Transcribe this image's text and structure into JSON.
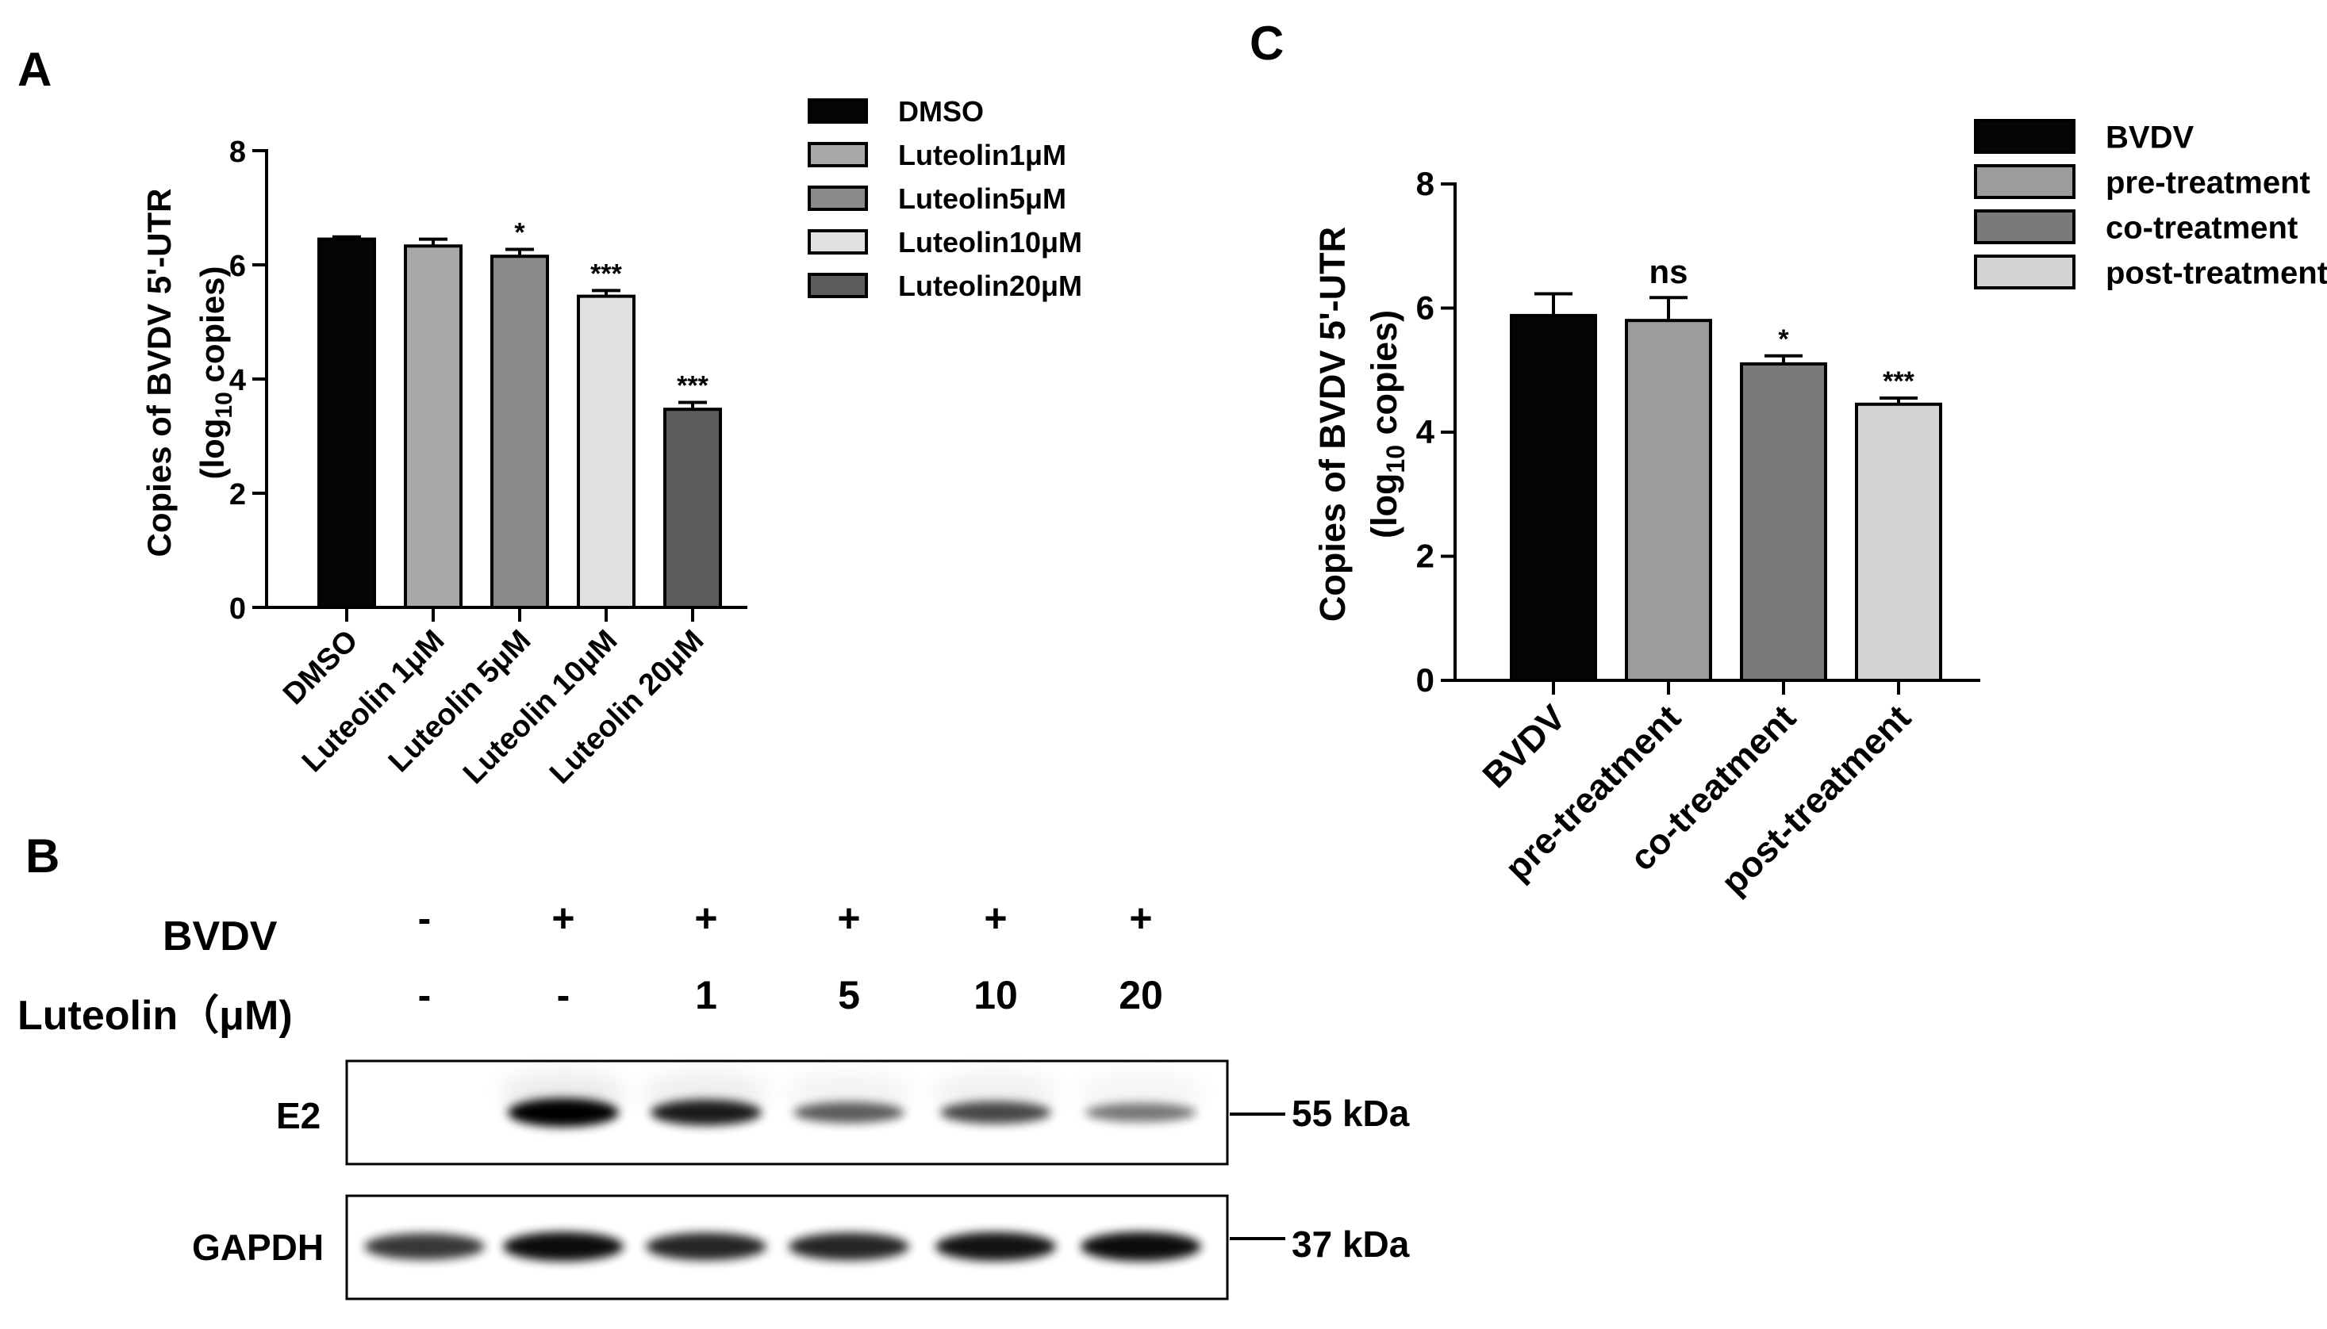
{
  "panel_labels": {
    "a": "A",
    "b": "B",
    "c": "C"
  },
  "chart_data": [
    {
      "type": "bar",
      "panel": "A",
      "ylabel_line1": "Copies of BVDV 5'-UTR",
      "ylabel_line2_pre": "(log",
      "ylabel_line2_sub": "10",
      "ylabel_line2_post": " copies)",
      "ylim": [
        0,
        8
      ],
      "yticks": [
        "0",
        "2",
        "4",
        "6",
        "8"
      ],
      "categories": [
        "DMSO",
        "Luteolin 1μM",
        "Luteolin 5μM",
        "Luteolin 10μM",
        "Luteolin 20μM"
      ],
      "values": [
        6.45,
        6.33,
        6.15,
        5.45,
        3.47
      ],
      "errors": [
        0.04,
        0.12,
        0.12,
        0.1,
        0.12
      ],
      "annotations": [
        "",
        "",
        "*",
        "***",
        "***"
      ],
      "colors": [
        "#050505",
        "#a8a8a8",
        "#8a8a8a",
        "#e0e0e0",
        "#5c5c5c"
      ],
      "legend": [
        "DMSO",
        "Luteolin1μM",
        "Luteolin5μM",
        "Luteolin10μM",
        "Luteolin20μM"
      ],
      "legend_position": "top-right"
    },
    {
      "type": "bar",
      "panel": "C",
      "ylabel_line1": "Copies of BVDV 5'-UTR",
      "ylabel_line2_pre": "(log",
      "ylabel_line2_sub": "10",
      "ylabel_line2_post": " copies)",
      "ylim": [
        0,
        8
      ],
      "yticks": [
        "0",
        "2",
        "4",
        "6",
        "8"
      ],
      "categories": [
        "BVDV",
        "pre-treatment",
        "co-treatment",
        "post-treatment"
      ],
      "values": [
        5.88,
        5.8,
        5.1,
        4.45
      ],
      "errors": [
        0.35,
        0.37,
        0.13,
        0.1
      ],
      "annotations": [
        "",
        "ns",
        "*",
        "***"
      ],
      "colors": [
        "#050505",
        "#9c9c9c",
        "#7a7a7a",
        "#d4d4d4"
      ],
      "legend": [
        "BVDV",
        "pre-treatment",
        "co-treatment",
        "post-treatment"
      ],
      "legend_position": "top-right"
    }
  ],
  "blot": {
    "row_labels": {
      "virus": "BVDV",
      "drug": "Luteolin（μM)"
    },
    "virus_signs": [
      "-",
      "+",
      "+",
      "+",
      "+",
      "+"
    ],
    "dose_labels": [
      "-",
      "-",
      "1",
      "5",
      "10",
      "20"
    ],
    "band_labels": [
      "E2",
      "GAPDH"
    ],
    "markers": [
      "55 kDa",
      "37 kDa"
    ],
    "e2_intensity": [
      0.0,
      1.0,
      0.85,
      0.6,
      0.68,
      0.5
    ],
    "gapdh_intensity": [
      0.78,
      0.95,
      0.85,
      0.85,
      0.92,
      0.95
    ]
  }
}
